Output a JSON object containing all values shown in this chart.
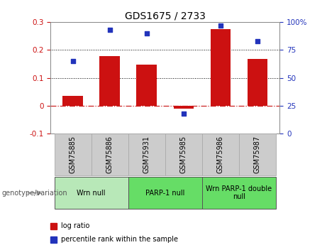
{
  "title": "GDS1675 / 2733",
  "samples": [
    "GSM75885",
    "GSM75886",
    "GSM75931",
    "GSM75985",
    "GSM75986",
    "GSM75987"
  ],
  "log_ratio": [
    0.035,
    0.178,
    0.148,
    -0.012,
    0.275,
    0.168
  ],
  "percentile_rank": [
    65,
    93,
    90,
    18,
    97,
    83
  ],
  "left_ylim": [
    -0.1,
    0.3
  ],
  "right_ylim": [
    0,
    100
  ],
  "left_yticks": [
    -0.1,
    0.0,
    0.1,
    0.2,
    0.3
  ],
  "right_yticks": [
    0,
    25,
    50,
    75,
    100
  ],
  "left_ytick_labels": [
    "-0.1",
    "0",
    "0.1",
    "0.2",
    "0.3"
  ],
  "right_ytick_labels": [
    "0",
    "25",
    "50",
    "75",
    "100%"
  ],
  "dotted_lines": [
    0.1,
    0.2
  ],
  "bar_color": "#cc1111",
  "dot_color": "#2233bb",
  "zero_line_color": "#cc2222",
  "groups": [
    {
      "label": "Wrn null",
      "start": 0,
      "end": 2,
      "color": "#b8e8b8"
    },
    {
      "label": "PARP-1 null",
      "start": 2,
      "end": 4,
      "color": "#66dd66"
    },
    {
      "label": "Wrn PARP-1 double\nnull",
      "start": 4,
      "end": 6,
      "color": "#66dd66"
    }
  ],
  "legend_items": [
    {
      "label": "log ratio",
      "color": "#cc1111"
    },
    {
      "label": "percentile rank within the sample",
      "color": "#2233bb"
    }
  ],
  "genotype_label": "genotype/variation",
  "background_color": "#ffffff",
  "plot_bg_color": "#ffffff",
  "sample_label_bg": "#cccccc",
  "spine_color": "#888888",
  "title_fontsize": 10,
  "tick_fontsize": 7.5,
  "label_fontsize": 7,
  "bar_width": 0.55
}
